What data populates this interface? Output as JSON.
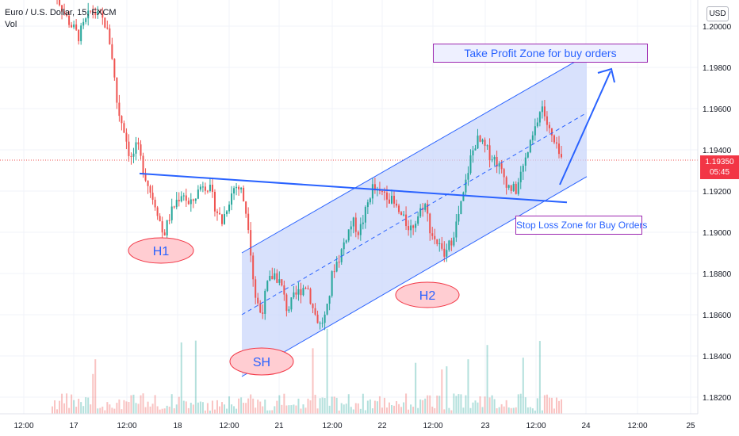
{
  "legend": {
    "symbol": "Euro / U.S. Dollar, 15, FXCM",
    "volume": "Vol"
  },
  "currency_button": "USD",
  "price_tag": {
    "price": "1.19350",
    "countdown": "05:45",
    "color": "#f23645"
  },
  "annotations": {
    "take_profit": "Take Profit Zone for buy orders",
    "stop_loss": "Stop Loss Zone for Buy Orders",
    "h1": "H1",
    "h2": "H2",
    "sh": "SH"
  },
  "colors": {
    "up_candle": "#26a69a",
    "down_candle": "#ef5350",
    "channel_fill": "#c8d4fb",
    "line_blue": "#2962ff",
    "ellipse_fill": "#ffcdd2",
    "ellipse_stroke": "#f23645",
    "box_border": "#9c27b0"
  },
  "chart_data": {
    "type": "candlestick",
    "y_axis": {
      "ticks": [
        1.2,
        1.198,
        1.196,
        1.194,
        1.192,
        1.19,
        1.188,
        1.186,
        1.184,
        1.182
      ],
      "tick_labels": [
        "1.20000",
        "1.19800",
        "1.19600",
        "1.19400",
        "1.19200",
        "1.19000",
        "1.18800",
        "1.18600",
        "1.18400",
        "1.18200"
      ],
      "range": [
        1.1812,
        1.2022
      ]
    },
    "x_axis": {
      "tick_labels": [
        "12:00",
        "17",
        "12:00",
        "18",
        "12:00",
        "21",
        "12:00",
        "22",
        "12:00",
        "23",
        "12:00",
        "24",
        "12:00",
        "25"
      ]
    },
    "last_price": 1.1935,
    "price_path": [
      [
        0,
        1.202
      ],
      [
        2,
        1.2005
      ],
      [
        4,
        1.1995
      ],
      [
        6,
        1.2008
      ],
      [
        8,
        1.2002
      ],
      [
        9,
        1.199
      ],
      [
        10,
        1.196
      ],
      [
        11,
        1.195
      ],
      [
        12,
        1.1935
      ],
      [
        13,
        1.1942
      ],
      [
        14,
        1.193
      ],
      [
        15,
        1.192
      ],
      [
        16,
        1.1912
      ],
      [
        17,
        1.1898
      ],
      [
        18,
        1.1908
      ],
      [
        19,
        1.1915
      ],
      [
        20,
        1.192
      ],
      [
        21,
        1.1912
      ],
      [
        22,
        1.1918
      ],
      [
        23,
        1.1924
      ],
      [
        24,
        1.1922
      ],
      [
        25,
        1.1912
      ],
      [
        26,
        1.1905
      ],
      [
        27,
        1.1915
      ],
      [
        28,
        1.1923
      ],
      [
        29,
        1.192
      ],
      [
        30,
        1.1905
      ],
      [
        31,
        1.187
      ],
      [
        32,
        1.186
      ],
      [
        33,
        1.1875
      ],
      [
        34,
        1.188
      ],
      [
        35,
        1.1875
      ],
      [
        36,
        1.1862
      ],
      [
        37,
        1.1868
      ],
      [
        38,
        1.1872
      ],
      [
        39,
        1.1875
      ],
      [
        40,
        1.1862
      ],
      [
        41,
        1.1855
      ],
      [
        42,
        1.186
      ],
      [
        43,
        1.1882
      ],
      [
        44,
        1.1888
      ],
      [
        45,
        1.1898
      ],
      [
        46,
        1.1905
      ],
      [
        47,
        1.19
      ],
      [
        48,
        1.191
      ],
      [
        49,
        1.1922
      ],
      [
        50,
        1.1918
      ],
      [
        51,
        1.192
      ],
      [
        52,
        1.1915
      ],
      [
        53,
        1.191
      ],
      [
        54,
        1.1905
      ],
      [
        55,
        1.1902
      ],
      [
        56,
        1.1908
      ],
      [
        57,
        1.1915
      ],
      [
        58,
        1.19
      ],
      [
        59,
        1.1895
      ],
      [
        60,
        1.1888
      ],
      [
        61,
        1.1895
      ],
      [
        62,
        1.1905
      ],
      [
        63,
        1.1918
      ],
      [
        64,
        1.1935
      ],
      [
        65,
        1.1945
      ],
      [
        66,
        1.1942
      ],
      [
        67,
        1.1938
      ],
      [
        68,
        1.1935
      ],
      [
        69,
        1.1928
      ],
      [
        70,
        1.1922
      ],
      [
        71,
        1.192
      ],
      [
        72,
        1.193
      ],
      [
        73,
        1.194
      ],
      [
        74,
        1.195
      ],
      [
        75,
        1.1962
      ],
      [
        76,
        1.195
      ],
      [
        77,
        1.1942
      ],
      [
        78,
        1.1935
      ]
    ],
    "price_path_x_range": [
      0,
      78
    ],
    "annotation_lines": {
      "neckline": [
        [
          1.19285,
          0
        ],
        [
          1.19145,
          1
        ]
      ],
      "channel_lower": [
        [
          1.183,
          0
        ],
        [
          1.1927,
          1
        ]
      ],
      "channel_upper": [
        [
          1.189,
          0
        ],
        [
          1.1986,
          1
        ]
      ],
      "channel_mid": [
        [
          1.186,
          0
        ],
        [
          1.1958,
          1
        ]
      ]
    }
  }
}
